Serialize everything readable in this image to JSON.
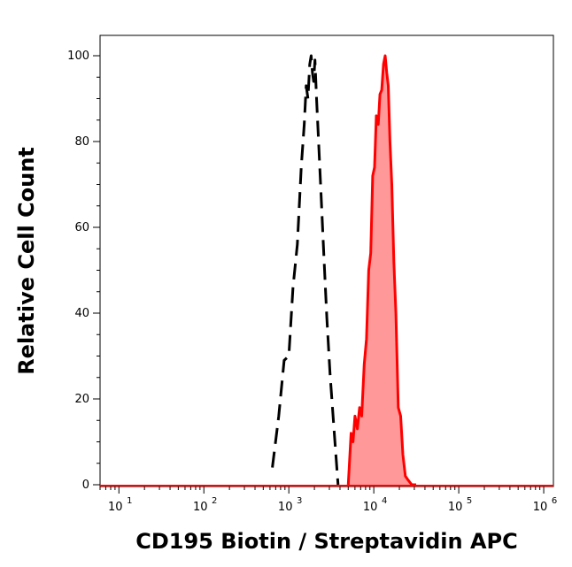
{
  "chart_data": {
    "type": "area",
    "xlabel": "CD195 Biotin / Streptavidin APC",
    "ylabel": "Relative Cell Count",
    "xscale": "log",
    "xlim": [
      6,
      1300000
    ],
    "ylim": [
      0,
      100
    ],
    "grid": false,
    "x_ticks": [
      {
        "base": "10",
        "exp": "1",
        "value": 10
      },
      {
        "base": "10",
        "exp": "2",
        "value": 100
      },
      {
        "base": "10",
        "exp": "3",
        "value": 1000
      },
      {
        "base": "10",
        "exp": "4",
        "value": 10000
      },
      {
        "base": "10",
        "exp": "5",
        "value": 100000
      },
      {
        "base": "10",
        "exp": "6",
        "value": 1000000
      }
    ],
    "y_ticks": [
      "0",
      "20",
      "40",
      "60",
      "80",
      "100"
    ],
    "series": [
      {
        "style": "dashed-outline",
        "color": "#000000",
        "x": [
          640,
          760,
          880,
          1000,
          1120,
          1260,
          1400,
          1520,
          1600,
          1680,
          1760,
          1830,
          1900,
          1960,
          2030,
          2120,
          2240,
          2380,
          2560,
          2800,
          3050,
          3400,
          3800
        ],
        "y": [
          4,
          16,
          29,
          30,
          46,
          56,
          74,
          84,
          93,
          90,
          98,
          100,
          96,
          94,
          99,
          90,
          80,
          69,
          55,
          39,
          26,
          13,
          0
        ]
      },
      {
        "style": "filled",
        "color": "#ff0000",
        "fill": "#ff9999",
        "x": [
          5000,
          5400,
          5700,
          6000,
          6400,
          6800,
          7200,
          7700,
          8200,
          8700,
          9200,
          9700,
          10200,
          10700,
          11300,
          11800,
          12400,
          13000,
          13600,
          14200,
          14800,
          15500,
          16300,
          17200,
          18200,
          19400,
          20700,
          22000,
          23500,
          25500,
          28000,
          31500
        ],
        "y": [
          0,
          12,
          10,
          16,
          13,
          18,
          16,
          28,
          34,
          50,
          54,
          72,
          74,
          86,
          84,
          91,
          92,
          98,
          100,
          96,
          93,
          80,
          70,
          52,
          40,
          18,
          16,
          7,
          2,
          1,
          0,
          0
        ]
      }
    ]
  }
}
